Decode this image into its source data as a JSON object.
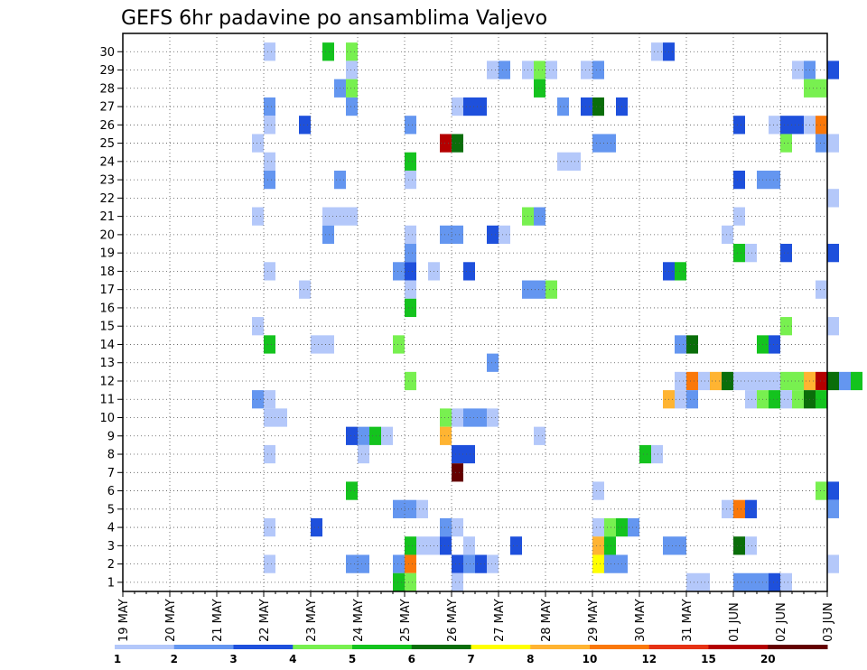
{
  "chart_data": {
    "type": "heatmap",
    "title": "GEFS 6hr padavine po ansamblima Valjevo",
    "xlabel": "",
    "ylabel": "",
    "x_tick_labels": [
      "19 MAY",
      "20 MAY",
      "21 MAY",
      "22 MAY",
      "23 MAY",
      "24 MAY",
      "25 MAY",
      "26 MAY",
      "27 MAY",
      "28 MAY",
      "29 MAY",
      "30 MAY",
      "31 MAY",
      "01 JUN",
      "02 JUN",
      "03 JUN"
    ],
    "y_tick_labels": [
      "1",
      "2",
      "3",
      "4",
      "5",
      "6",
      "7",
      "8",
      "9",
      "10",
      "11",
      "12",
      "13",
      "14",
      "15",
      "16",
      "17",
      "18",
      "19",
      "20",
      "21",
      "22",
      "23",
      "24",
      "25",
      "26",
      "27",
      "28",
      "29",
      "30"
    ],
    "xlim_days": [
      0,
      15
    ],
    "ylim_members": [
      0,
      30
    ],
    "grid": true,
    "colorbar": {
      "levels": [
        "1",
        "2",
        "3",
        "4",
        "5",
        "6",
        "7",
        "8",
        "10",
        "12",
        "15",
        "20"
      ],
      "colors": [
        "#b4c8fa",
        "#6496f0",
        "#1e50dc",
        "#78f050",
        "#14c31e",
        "#0a6e0a",
        "#ffff00",
        "#ffb432",
        "#fa780a",
        "#e63214",
        "#b40000",
        "#640000"
      ]
    },
    "cells": [
      [
        11.25,
        11.5,
        29,
        30,
        1
      ],
      [
        11.5,
        11.75,
        29,
        30,
        3
      ],
      [
        3.0,
        3.25,
        29,
        30,
        1
      ],
      [
        4.25,
        4.5,
        29,
        30,
        5
      ],
      [
        4.75,
        5.0,
        29,
        30,
        4
      ],
      [
        4.75,
        5.0,
        28,
        29,
        1
      ],
      [
        7.75,
        8.0,
        28,
        29,
        1
      ],
      [
        8.0,
        8.25,
        28,
        29,
        2
      ],
      [
        8.5,
        8.75,
        28,
        29,
        1
      ],
      [
        8.75,
        9.0,
        28,
        29,
        4
      ],
      [
        9.0,
        9.25,
        28,
        29,
        1
      ],
      [
        9.75,
        10.0,
        28,
        29,
        1
      ],
      [
        10.0,
        10.25,
        28,
        29,
        2
      ],
      [
        14.25,
        14.5,
        28,
        29,
        1
      ],
      [
        14.5,
        14.75,
        28,
        29,
        2
      ],
      [
        15.0,
        15.25,
        28,
        29,
        3
      ],
      [
        4.5,
        4.75,
        27,
        28,
        2
      ],
      [
        4.75,
        5.0,
        27,
        28,
        4
      ],
      [
        8.75,
        9.0,
        27,
        28,
        5
      ],
      [
        14.5,
        15.0,
        27,
        28,
        4
      ],
      [
        3.0,
        3.25,
        26,
        27,
        2
      ],
      [
        4.75,
        5.0,
        26,
        27,
        2
      ],
      [
        7.0,
        7.25,
        26,
        27,
        1
      ],
      [
        7.25,
        7.75,
        26,
        27,
        3
      ],
      [
        9.25,
        9.5,
        26,
        27,
        2
      ],
      [
        9.75,
        10.0,
        26,
        27,
        3
      ],
      [
        10.0,
        10.25,
        26,
        27,
        6
      ],
      [
        10.5,
        10.75,
        26,
        27,
        3
      ],
      [
        3.0,
        3.25,
        25,
        26,
        1
      ],
      [
        3.75,
        4.0,
        25,
        26,
        3
      ],
      [
        6.0,
        6.25,
        25,
        26,
        2
      ],
      [
        13.0,
        13.25,
        25,
        26,
        3
      ],
      [
        13.75,
        14.0,
        25,
        26,
        1
      ],
      [
        14.0,
        14.5,
        25,
        26,
        3
      ],
      [
        14.5,
        14.75,
        25,
        26,
        1
      ],
      [
        14.75,
        15.0,
        25,
        26,
        9
      ],
      [
        2.75,
        3.0,
        24,
        25,
        1
      ],
      [
        6.75,
        7.0,
        24,
        25,
        11
      ],
      [
        7.0,
        7.25,
        24,
        25,
        6
      ],
      [
        10.0,
        10.5,
        24,
        25,
        2
      ],
      [
        14.0,
        14.25,
        24,
        25,
        4
      ],
      [
        14.75,
        15.0,
        24,
        25,
        2
      ],
      [
        15.0,
        15.25,
        24,
        25,
        1
      ],
      [
        3.0,
        3.25,
        23,
        24,
        1
      ],
      [
        6.0,
        6.25,
        23,
        24,
        5
      ],
      [
        9.25,
        9.75,
        23,
        24,
        1
      ],
      [
        3.0,
        3.25,
        22,
        23,
        2
      ],
      [
        4.5,
        4.75,
        22,
        23,
        2
      ],
      [
        6.0,
        6.25,
        22,
        23,
        1
      ],
      [
        13.0,
        13.25,
        22,
        23,
        3
      ],
      [
        13.5,
        14.0,
        22,
        23,
        2
      ],
      [
        15.0,
        15.25,
        21,
        22,
        1
      ],
      [
        2.75,
        3.0,
        20,
        21,
        1
      ],
      [
        4.25,
        4.5,
        20,
        21,
        1
      ],
      [
        4.5,
        5.0,
        20,
        21,
        1
      ],
      [
        8.5,
        8.75,
        20,
        21,
        4
      ],
      [
        8.75,
        9.0,
        20,
        21,
        2
      ],
      [
        13.0,
        13.25,
        20,
        21,
        1
      ],
      [
        4.25,
        4.5,
        19,
        20,
        2
      ],
      [
        6.0,
        6.25,
        19,
        20,
        1
      ],
      [
        6.75,
        7.25,
        19,
        20,
        2
      ],
      [
        7.75,
        8.0,
        19,
        20,
        3
      ],
      [
        8.0,
        8.25,
        19,
        20,
        1
      ],
      [
        12.75,
        13.0,
        19,
        20,
        1
      ],
      [
        6.0,
        6.25,
        18,
        19,
        2
      ],
      [
        13.0,
        13.25,
        18,
        19,
        5
      ],
      [
        13.25,
        13.5,
        18,
        19,
        1
      ],
      [
        14.0,
        14.25,
        18,
        19,
        3
      ],
      [
        15.0,
        15.25,
        18,
        19,
        3
      ],
      [
        3.0,
        3.25,
        17,
        18,
        1
      ],
      [
        5.75,
        6.0,
        17,
        18,
        2
      ],
      [
        6.0,
        6.25,
        17,
        18,
        3
      ],
      [
        6.5,
        6.75,
        17,
        18,
        1
      ],
      [
        7.25,
        7.5,
        17,
        18,
        3
      ],
      [
        11.5,
        11.75,
        17,
        18,
        3
      ],
      [
        11.75,
        12.0,
        17,
        18,
        5
      ],
      [
        3.75,
        4.0,
        16,
        17,
        1
      ],
      [
        6.0,
        6.25,
        16,
        17,
        1
      ],
      [
        8.5,
        9.0,
        16,
        17,
        2
      ],
      [
        9.0,
        9.25,
        16,
        17,
        4
      ],
      [
        14.75,
        15.0,
        16,
        17,
        1
      ],
      [
        6.0,
        6.25,
        15,
        16,
        5
      ],
      [
        2.75,
        3.0,
        14,
        15,
        1
      ],
      [
        14.0,
        14.25,
        14,
        15,
        4
      ],
      [
        15.0,
        15.25,
        14,
        15,
        1
      ],
      [
        3.0,
        3.25,
        13,
        14,
        5
      ],
      [
        4.0,
        4.5,
        13,
        14,
        1
      ],
      [
        5.75,
        6.0,
        13,
        14,
        4
      ],
      [
        11.75,
        12.0,
        13,
        14,
        2
      ],
      [
        12.0,
        12.25,
        13,
        14,
        6
      ],
      [
        13.5,
        13.75,
        13,
        14,
        5
      ],
      [
        13.75,
        14.0,
        13,
        14,
        3
      ],
      [
        7.75,
        8.0,
        12,
        13,
        2
      ],
      [
        6.0,
        6.25,
        11,
        12,
        4
      ],
      [
        11.75,
        12.0,
        11,
        12,
        1
      ],
      [
        12.0,
        12.25,
        11,
        12,
        9
      ],
      [
        12.25,
        12.5,
        11,
        12,
        1
      ],
      [
        12.5,
        12.75,
        11,
        12,
        8
      ],
      [
        12.75,
        13.0,
        11,
        12,
        6
      ],
      [
        13.0,
        13.25,
        11,
        12,
        1
      ],
      [
        13.25,
        13.75,
        11,
        12,
        1
      ],
      [
        13.75,
        14.0,
        11,
        12,
        1
      ],
      [
        14.0,
        14.25,
        11,
        12,
        4
      ],
      [
        14.25,
        14.5,
        11,
        12,
        4
      ],
      [
        14.5,
        14.75,
        11,
        12,
        8
      ],
      [
        14.75,
        15.0,
        11,
        12,
        11
      ],
      [
        15.0,
        15.25,
        11,
        12,
        6
      ],
      [
        15.25,
        15.5,
        11,
        12,
        2
      ],
      [
        15.5,
        15.75,
        11,
        12,
        5
      ],
      [
        2.75,
        3.0,
        10,
        11,
        2
      ],
      [
        3.0,
        3.25,
        10,
        11,
        1
      ],
      [
        11.5,
        11.75,
        10,
        11,
        8
      ],
      [
        11.75,
        12.0,
        10,
        11,
        1
      ],
      [
        12.0,
        12.25,
        10,
        11,
        2
      ],
      [
        13.25,
        13.5,
        10,
        11,
        1
      ],
      [
        13.5,
        13.75,
        10,
        11,
        4
      ],
      [
        13.75,
        14.0,
        10,
        11,
        5
      ],
      [
        14.0,
        14.25,
        10,
        11,
        1
      ],
      [
        14.25,
        14.5,
        10,
        11,
        4
      ],
      [
        14.5,
        14.75,
        10,
        11,
        6
      ],
      [
        14.75,
        15.0,
        10,
        11,
        5
      ],
      [
        3.0,
        3.5,
        9,
        10,
        1
      ],
      [
        6.75,
        7.0,
        9,
        10,
        4
      ],
      [
        7.0,
        7.25,
        9,
        10,
        1
      ],
      [
        7.25,
        7.75,
        9,
        10,
        2
      ],
      [
        7.75,
        8.0,
        9,
        10,
        1
      ],
      [
        4.75,
        5.0,
        8,
        9,
        3
      ],
      [
        5.0,
        5.25,
        8,
        9,
        2
      ],
      [
        5.25,
        5.5,
        8,
        9,
        5
      ],
      [
        5.5,
        5.75,
        8,
        9,
        1
      ],
      [
        6.75,
        7.0,
        8,
        9,
        8
      ],
      [
        8.75,
        9.0,
        8,
        9,
        1
      ],
      [
        3.0,
        3.25,
        7,
        8,
        1
      ],
      [
        5.0,
        5.25,
        7,
        8,
        1
      ],
      [
        7.0,
        7.5,
        7,
        8,
        3
      ],
      [
        11.0,
        11.25,
        7,
        8,
        5
      ],
      [
        11.25,
        11.5,
        7,
        8,
        1
      ],
      [
        7.0,
        7.25,
        6,
        7,
        12
      ],
      [
        4.75,
        5.0,
        5,
        6,
        5
      ],
      [
        10.0,
        10.25,
        5,
        6,
        1
      ],
      [
        14.75,
        15.0,
        5,
        6,
        4
      ],
      [
        15.0,
        15.25,
        5,
        6,
        3
      ],
      [
        5.75,
        6.25,
        4,
        5,
        2
      ],
      [
        6.25,
        6.5,
        4,
        5,
        1
      ],
      [
        12.75,
        13.0,
        4,
        5,
        1
      ],
      [
        13.0,
        13.25,
        4,
        5,
        9
      ],
      [
        13.25,
        13.5,
        4,
        5,
        3
      ],
      [
        15.0,
        15.25,
        4,
        5,
        2
      ],
      [
        3.0,
        3.25,
        3,
        4,
        1
      ],
      [
        4.0,
        4.25,
        3,
        4,
        3
      ],
      [
        6.75,
        7.0,
        3,
        4,
        2
      ],
      [
        7.0,
        7.25,
        3,
        4,
        1
      ],
      [
        10.0,
        10.25,
        3,
        4,
        1
      ],
      [
        10.25,
        10.5,
        3,
        4,
        4
      ],
      [
        10.5,
        10.75,
        3,
        4,
        5
      ],
      [
        10.75,
        11.0,
        3,
        4,
        2
      ],
      [
        6.0,
        6.25,
        2,
        3,
        5
      ],
      [
        6.25,
        6.75,
        2,
        3,
        1
      ],
      [
        6.75,
        7.0,
        2,
        3,
        3
      ],
      [
        7.25,
        7.5,
        2,
        3,
        1
      ],
      [
        8.25,
        8.5,
        2,
        3,
        3
      ],
      [
        10.0,
        10.25,
        2,
        3,
        8
      ],
      [
        10.25,
        10.5,
        2,
        3,
        5
      ],
      [
        11.5,
        12.0,
        2,
        3,
        2
      ],
      [
        13.0,
        13.25,
        2,
        3,
        6
      ],
      [
        13.25,
        13.5,
        2,
        3,
        1
      ],
      [
        3.0,
        3.25,
        1,
        2,
        1
      ],
      [
        4.75,
        5.25,
        1,
        2,
        2
      ],
      [
        5.75,
        6.0,
        1,
        2,
        2
      ],
      [
        6.0,
        6.25,
        1,
        2,
        9
      ],
      [
        7.0,
        7.25,
        1,
        2,
        3
      ],
      [
        7.25,
        7.5,
        1,
        2,
        2
      ],
      [
        7.5,
        7.75,
        1,
        2,
        3
      ],
      [
        7.75,
        8.0,
        1,
        2,
        1
      ],
      [
        10.0,
        10.25,
        1,
        2,
        7
      ],
      [
        10.25,
        10.75,
        1,
        2,
        2
      ],
      [
        15.0,
        15.25,
        1,
        2,
        1
      ],
      [
        5.75,
        6.0,
        0,
        1,
        5
      ],
      [
        6.0,
        6.25,
        0,
        1,
        4
      ],
      [
        7.0,
        7.25,
        0,
        1,
        1
      ],
      [
        12.0,
        12.5,
        0,
        1,
        1
      ],
      [
        13.0,
        13.75,
        0,
        1,
        2
      ],
      [
        13.75,
        14.0,
        0,
        1,
        3
      ],
      [
        14.0,
        14.25,
        0,
        1,
        1
      ]
    ]
  }
}
